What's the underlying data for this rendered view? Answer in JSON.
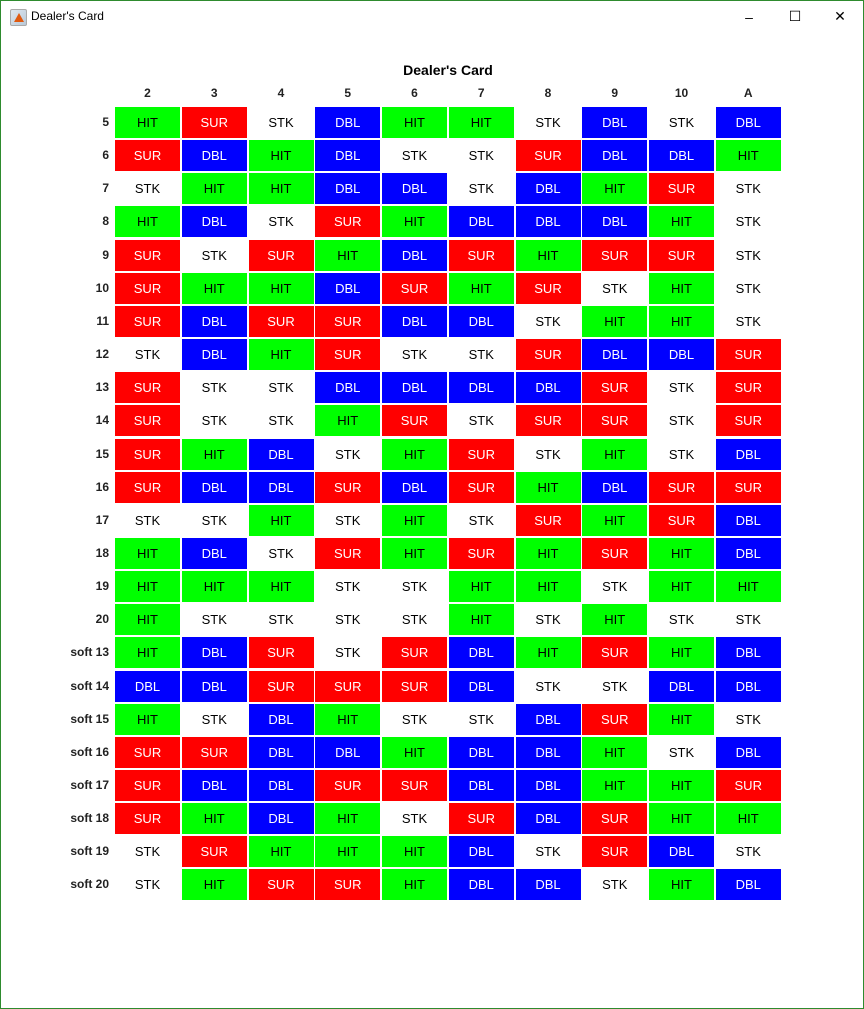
{
  "window": {
    "title": "Dealer's Card",
    "minimize": "–",
    "maximize": "☐",
    "close": "✕",
    "icon": "matlab-icon"
  },
  "heading": "Dealer's Card",
  "columns": [
    "2",
    "3",
    "4",
    "5",
    "6",
    "7",
    "8",
    "9",
    "10",
    "A"
  ],
  "action_colors": {
    "HIT": {
      "bg": "#00ff00",
      "fg": "#000000"
    },
    "SUR": {
      "bg": "#ff0000",
      "fg": "#ffffff"
    },
    "DBL": {
      "bg": "#0000ff",
      "fg": "#ffffff"
    },
    "STK": {
      "bg": "#ffffff",
      "fg": "#000000"
    }
  },
  "rows": [
    {
      "label": "5",
      "cells": [
        "HIT",
        "SUR",
        "STK",
        "DBL",
        "HIT",
        "HIT",
        "STK",
        "DBL",
        "STK",
        "DBL"
      ]
    },
    {
      "label": "6",
      "cells": [
        "SUR",
        "DBL",
        "HIT",
        "DBL",
        "STK",
        "STK",
        "SUR",
        "DBL",
        "DBL",
        "HIT"
      ]
    },
    {
      "label": "7",
      "cells": [
        "STK",
        "HIT",
        "HIT",
        "DBL",
        "DBL",
        "STK",
        "DBL",
        "HIT",
        "SUR",
        "STK"
      ]
    },
    {
      "label": "8",
      "cells": [
        "HIT",
        "DBL",
        "STK",
        "SUR",
        "HIT",
        "DBL",
        "DBL",
        "DBL",
        "HIT",
        "STK"
      ]
    },
    {
      "label": "9",
      "cells": [
        "SUR",
        "STK",
        "SUR",
        "HIT",
        "DBL",
        "SUR",
        "HIT",
        "SUR",
        "SUR",
        "STK"
      ]
    },
    {
      "label": "10",
      "cells": [
        "SUR",
        "HIT",
        "HIT",
        "DBL",
        "SUR",
        "HIT",
        "SUR",
        "STK",
        "HIT",
        "STK"
      ]
    },
    {
      "label": "11",
      "cells": [
        "SUR",
        "DBL",
        "SUR",
        "SUR",
        "DBL",
        "DBL",
        "STK",
        "HIT",
        "HIT",
        "STK"
      ]
    },
    {
      "label": "12",
      "cells": [
        "STK",
        "DBL",
        "HIT",
        "SUR",
        "STK",
        "STK",
        "SUR",
        "DBL",
        "DBL",
        "SUR"
      ]
    },
    {
      "label": "13",
      "cells": [
        "SUR",
        "STK",
        "STK",
        "DBL",
        "DBL",
        "DBL",
        "DBL",
        "SUR",
        "STK",
        "SUR"
      ]
    },
    {
      "label": "14",
      "cells": [
        "SUR",
        "STK",
        "STK",
        "HIT",
        "SUR",
        "STK",
        "SUR",
        "SUR",
        "STK",
        "SUR"
      ]
    },
    {
      "label": "15",
      "cells": [
        "SUR",
        "HIT",
        "DBL",
        "STK",
        "HIT",
        "SUR",
        "STK",
        "HIT",
        "STK",
        "DBL"
      ]
    },
    {
      "label": "16",
      "cells": [
        "SUR",
        "DBL",
        "DBL",
        "SUR",
        "DBL",
        "SUR",
        "HIT",
        "DBL",
        "SUR",
        "SUR"
      ]
    },
    {
      "label": "17",
      "cells": [
        "STK",
        "STK",
        "HIT",
        "STK",
        "HIT",
        "STK",
        "SUR",
        "HIT",
        "SUR",
        "DBL"
      ]
    },
    {
      "label": "18",
      "cells": [
        "HIT",
        "DBL",
        "STK",
        "SUR",
        "HIT",
        "SUR",
        "HIT",
        "SUR",
        "HIT",
        "DBL"
      ]
    },
    {
      "label": "19",
      "cells": [
        "HIT",
        "HIT",
        "HIT",
        "STK",
        "STK",
        "HIT",
        "HIT",
        "STK",
        "HIT",
        "HIT"
      ]
    },
    {
      "label": "20",
      "cells": [
        "HIT",
        "STK",
        "STK",
        "STK",
        "STK",
        "HIT",
        "STK",
        "HIT",
        "STK",
        "STK"
      ]
    },
    {
      "label": "soft 13",
      "cells": [
        "HIT",
        "DBL",
        "SUR",
        "STK",
        "SUR",
        "DBL",
        "HIT",
        "SUR",
        "HIT",
        "DBL"
      ]
    },
    {
      "label": "soft 14",
      "cells": [
        "DBL",
        "DBL",
        "SUR",
        "SUR",
        "SUR",
        "DBL",
        "STK",
        "STK",
        "DBL",
        "DBL"
      ]
    },
    {
      "label": "soft 15",
      "cells": [
        "HIT",
        "STK",
        "DBL",
        "HIT",
        "STK",
        "STK",
        "DBL",
        "SUR",
        "HIT",
        "STK"
      ]
    },
    {
      "label": "soft 16",
      "cells": [
        "SUR",
        "SUR",
        "DBL",
        "DBL",
        "HIT",
        "DBL",
        "DBL",
        "HIT",
        "STK",
        "DBL"
      ]
    },
    {
      "label": "soft 17",
      "cells": [
        "SUR",
        "DBL",
        "DBL",
        "SUR",
        "SUR",
        "DBL",
        "DBL",
        "HIT",
        "HIT",
        "SUR"
      ]
    },
    {
      "label": "soft 18",
      "cells": [
        "SUR",
        "HIT",
        "DBL",
        "HIT",
        "STK",
        "SUR",
        "DBL",
        "SUR",
        "HIT",
        "HIT"
      ]
    },
    {
      "label": "soft 19",
      "cells": [
        "STK",
        "SUR",
        "HIT",
        "HIT",
        "HIT",
        "DBL",
        "STK",
        "SUR",
        "DBL",
        "STK"
      ]
    },
    {
      "label": "soft 20",
      "cells": [
        "STK",
        "HIT",
        "SUR",
        "SUR",
        "HIT",
        "DBL",
        "DBL",
        "STK",
        "HIT",
        "DBL"
      ]
    }
  ]
}
